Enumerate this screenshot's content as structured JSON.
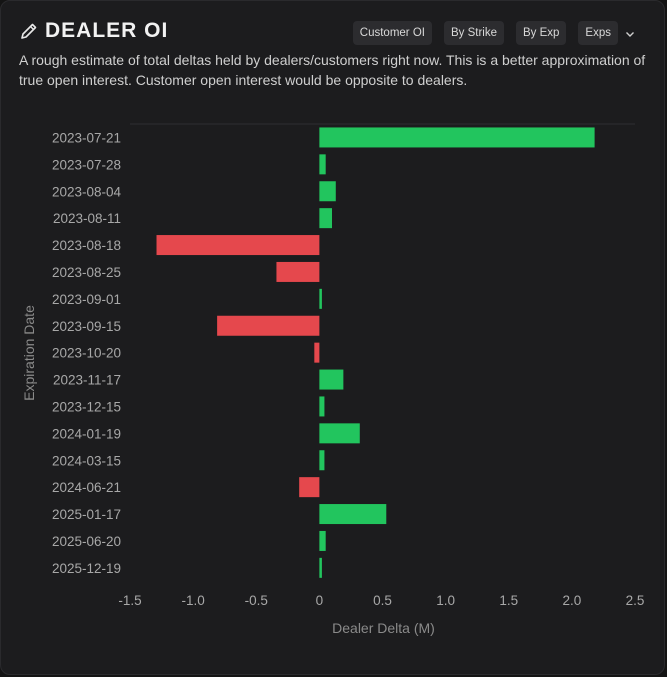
{
  "header": {
    "title": "DEALER OI",
    "buttons": [
      "Customer OI",
      "By Strike",
      "By Exp",
      "Exps"
    ]
  },
  "description": "A rough estimate of total deltas held by dealers/customers right now. This is a better approximation of true open interest. Customer open interest would be opposite to dealers.",
  "icons": {
    "title_icon": "pencil-icon",
    "dropdown_icon": "chevron-down-icon"
  },
  "colors": {
    "positive": "#22c55e",
    "negative": "#e5484d"
  },
  "chart_data": {
    "type": "bar",
    "orientation": "horizontal",
    "categories": [
      "2023-07-21",
      "2023-07-28",
      "2023-08-04",
      "2023-08-11",
      "2023-08-18",
      "2023-08-25",
      "2023-09-01",
      "2023-09-15",
      "2023-10-20",
      "2023-11-17",
      "2023-12-15",
      "2024-01-19",
      "2024-03-15",
      "2024-06-21",
      "2025-01-17",
      "2025-06-20",
      "2025-12-19"
    ],
    "values": [
      2.18,
      0.05,
      0.13,
      0.1,
      -1.29,
      -0.34,
      0.02,
      -0.81,
      -0.04,
      0.19,
      0.04,
      0.32,
      0.04,
      -0.16,
      0.53,
      0.05,
      0.02
    ],
    "xlabel": "Dealer Delta (M)",
    "ylabel": "Expiration Date",
    "xlim": [
      -1.5,
      2.5
    ],
    "xticks": [
      "-1.5",
      "-1.0",
      "-0.5",
      "0",
      "0.5",
      "1.0",
      "1.5",
      "2.0",
      "2.5"
    ],
    "grid": false
  }
}
